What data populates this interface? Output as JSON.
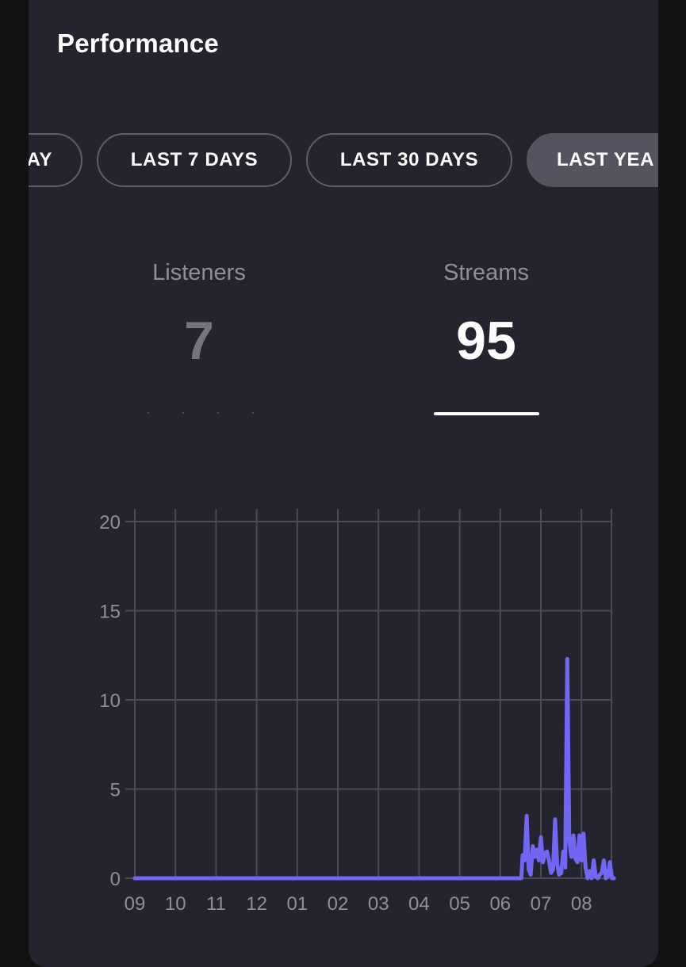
{
  "header": {
    "title": "Performance"
  },
  "range_tabs": [
    {
      "label": "TODAY",
      "visible_label": "AY",
      "active": false
    },
    {
      "label": "LAST 7 DAYS",
      "active": false
    },
    {
      "label": "LAST 30 DAYS",
      "active": false
    },
    {
      "label": "LAST YEAR",
      "visible_label": "LAST YEA",
      "active": true
    }
  ],
  "metrics": {
    "listeners": {
      "label": "Listeners",
      "value": "7"
    },
    "streams": {
      "label": "Streams",
      "value": "95"
    }
  },
  "colors": {
    "card_bg": "#24242e",
    "line": "#7266f5",
    "grid": "#4a4a54",
    "axis_text": "#8f8f99",
    "active_tab": "#545460"
  },
  "chart_data": {
    "type": "line",
    "title": "",
    "xlabel": "",
    "ylabel": "",
    "ylim": [
      0,
      20
    ],
    "y_ticks": [
      0,
      5,
      10,
      15,
      20
    ],
    "x_ticks": [
      "09",
      "10",
      "11",
      "12",
      "01",
      "02",
      "03",
      "04",
      "05",
      "06",
      "07",
      "08"
    ],
    "x_range": [
      0,
      11.8
    ],
    "grid": true,
    "series": [
      {
        "x": [
          0,
          9.52,
          9.55,
          9.6,
          9.65,
          9.7,
          9.75,
          9.8,
          9.85,
          9.9,
          9.95,
          10.0,
          10.05,
          10.1,
          10.15,
          10.2,
          10.25,
          10.3,
          10.35,
          10.4,
          10.45,
          10.5,
          10.55,
          10.6,
          10.65,
          10.7,
          10.75,
          10.8,
          10.85,
          10.9,
          10.95,
          11.0,
          11.05,
          11.1,
          11.15,
          11.2,
          11.25,
          11.3,
          11.35,
          11.4,
          11.45,
          11.5,
          11.55,
          11.6,
          11.65,
          11.7,
          11.75,
          11.8
        ],
        "y": [
          0,
          0,
          1.3,
          1.0,
          3.5,
          0.5,
          0.2,
          1.8,
          1.2,
          1.6,
          1.0,
          2.3,
          0.9,
          1.4,
          1.5,
          1.0,
          0.3,
          0.5,
          3.3,
          0.8,
          0.2,
          0.3,
          1.5,
          0.6,
          12.3,
          2.2,
          1.2,
          2.4,
          1.1,
          0.9,
          2.4,
          1.0,
          2.5,
          0.6,
          0.0,
          0.4,
          0.0,
          1.0,
          0.1,
          0.0,
          0.2,
          0.3,
          1.0,
          0.0,
          0.1,
          0.9,
          0.0,
          0.0
        ]
      }
    ]
  }
}
